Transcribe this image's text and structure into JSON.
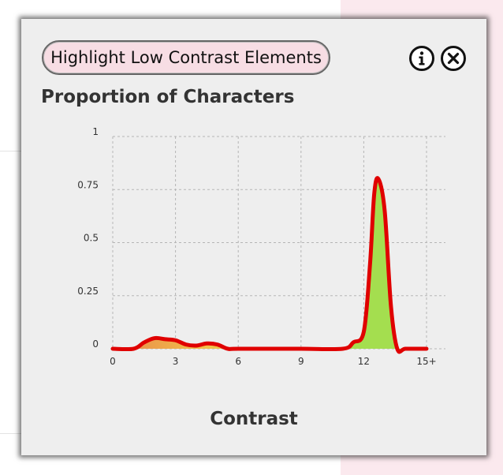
{
  "dialog": {
    "highlight_button_label": "Highlight Low Contrast Elements",
    "info_icon": "info-circle-icon",
    "close_icon": "close-circle-icon",
    "title": "Proportion of Characters"
  },
  "chart_data": {
    "type": "area",
    "title": "Proportion of Characters",
    "xlabel": "Contrast",
    "ylabel": "",
    "xlim": [
      0,
      15
    ],
    "ylim": [
      0,
      1
    ],
    "x_ticks": [
      "0",
      "3",
      "6",
      "9",
      "12",
      "15+"
    ],
    "y_ticks": [
      "0",
      "0.25",
      "0.5",
      "0.75",
      "1"
    ],
    "grid": true,
    "line_color": "#e00000",
    "fill_colors": {
      "low": "#e8874a",
      "mid": "#f2c14a",
      "high": "#a4de4f"
    },
    "series": [
      {
        "x": [
          0,
          1,
          1.5,
          2,
          2.5,
          3,
          3.5,
          4,
          4.5,
          5,
          5.5,
          6,
          9,
          11,
          11.5,
          12,
          12.3,
          12.5,
          12.7,
          13,
          13.3,
          13.6,
          14,
          15
        ],
        "values": [
          0,
          0,
          0.03,
          0.05,
          0.045,
          0.04,
          0.02,
          0.015,
          0.025,
          0.02,
          0,
          0,
          0,
          0,
          0.03,
          0.08,
          0.4,
          0.73,
          0.8,
          0.65,
          0.2,
          0,
          0,
          0
        ]
      }
    ]
  }
}
